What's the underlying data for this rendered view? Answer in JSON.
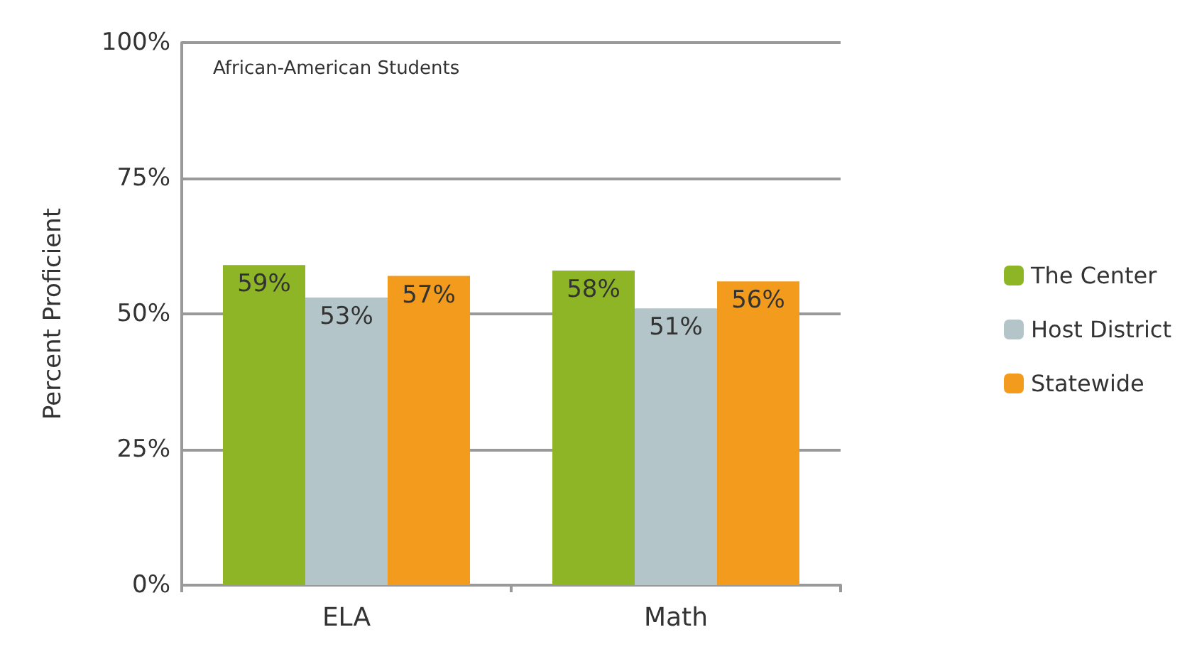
{
  "chart_data": {
    "type": "bar",
    "ylabel": "Percent Proficient",
    "annotations": [
      "African-American Students"
    ],
    "categories": [
      "ELA",
      "Math"
    ],
    "series": [
      {
        "name": "The Center",
        "color": "#8db526",
        "values": [
          59,
          58
        ],
        "value_labels": [
          "59%",
          "58%"
        ]
      },
      {
        "name": "Host District",
        "color": "#b3c5c8",
        "values": [
          53,
          51
        ],
        "value_labels": [
          "53%",
          "51%"
        ]
      },
      {
        "name": "Statewide",
        "color": "#f29b1c",
        "values": [
          57,
          56
        ],
        "value_labels": [
          "57%",
          "56%"
        ]
      }
    ],
    "ylim": [
      0,
      100
    ],
    "yticks": [
      {
        "value": 0,
        "label": "0%"
      },
      {
        "value": 25,
        "label": "25%"
      },
      {
        "value": 50,
        "label": "50%"
      },
      {
        "value": 75,
        "label": "75%"
      },
      {
        "value": 100,
        "label": "100%"
      }
    ],
    "grid": "y",
    "legend": "right"
  }
}
